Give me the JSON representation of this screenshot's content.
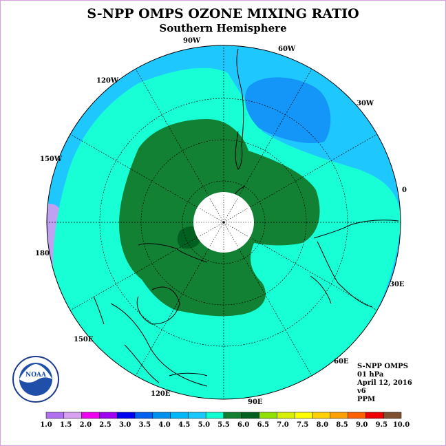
{
  "title": "S-NPP OMPS OZONE MIXING RATIO",
  "subtitle": "Southern Hemisphere",
  "longitude_labels": {
    "w90": "90W",
    "w60": "60W",
    "w30": "30W",
    "w120": "120W",
    "w150": "150W",
    "zero": "0",
    "e180": "180",
    "e30": "30E",
    "e150": "150E",
    "e60": "60E",
    "e120": "120E",
    "e90": "90E"
  },
  "info": {
    "instrument": "S-NPP OMPS",
    "level": "01 hPa",
    "date": "April 12, 2016",
    "version": "v6",
    "units": "PPM"
  },
  "logo_text": "NOAA",
  "colorbar": {
    "ticks": [
      "1.0",
      "1.5",
      "2.0",
      "2.5",
      "3.0",
      "3.5",
      "4.0",
      "4.5",
      "5.0",
      "5.5",
      "6.0",
      "6.5",
      "7.0",
      "7.5",
      "8.0",
      "8.5",
      "9.0",
      "9.5",
      "10.0"
    ],
    "colors": [
      "#b070f0",
      "#d8a0f0",
      "#f000f0",
      "#a000f0",
      "#0000f0",
      "#0060f0",
      "#0090f0",
      "#00b8f8",
      "#18c8ff",
      "#10ffd0",
      "#108030",
      "#006020",
      "#90e000",
      "#d8f000",
      "#ffff00",
      "#ffd000",
      "#ffa000",
      "#ff6000",
      "#f00000",
      "#805030"
    ]
  },
  "map_colors": {
    "ocean_band": "#1ec8ff",
    "cyan_band": "#18ffd6",
    "green_band": "#128134",
    "dark_green": "#006020",
    "blue_patch": "#1496f8",
    "light_purple": "#c0a0f0"
  }
}
